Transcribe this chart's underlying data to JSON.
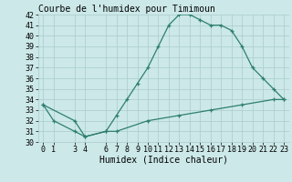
{
  "title": "Courbe de l'humidex pour Timimoun",
  "xlabel": "Humidex (Indice chaleur)",
  "ylabel": "",
  "line1_x": [
    0,
    1,
    3,
    4,
    6,
    7,
    8,
    9,
    10,
    11,
    12,
    13,
    14,
    15,
    16,
    17,
    18,
    19,
    20,
    21,
    22,
    23
  ],
  "line1_y": [
    33.5,
    32,
    31,
    30.5,
    31,
    32.5,
    34,
    35.5,
    37,
    39,
    41,
    42,
    42,
    41.5,
    41,
    41,
    40.5,
    39,
    37,
    36,
    35,
    34
  ],
  "line2_x": [
    0,
    3,
    4,
    6,
    7,
    10,
    13,
    16,
    19,
    22,
    23
  ],
  "line2_y": [
    33.5,
    32,
    30.5,
    31,
    31,
    32,
    32.5,
    33,
    33.5,
    34,
    34
  ],
  "color": "#2d7f6e",
  "bg_color": "#cce8e8",
  "grid_color": "#aacccc",
  "xlim": [
    -0.5,
    23.5
  ],
  "ylim": [
    30,
    42
  ],
  "xticks": [
    0,
    1,
    3,
    4,
    6,
    7,
    8,
    9,
    10,
    11,
    12,
    13,
    14,
    15,
    16,
    17,
    18,
    19,
    20,
    21,
    22,
    23
  ],
  "yticks": [
    30,
    31,
    32,
    33,
    34,
    35,
    36,
    37,
    38,
    39,
    40,
    41,
    42
  ],
  "title_fontsize": 7,
  "label_fontsize": 7,
  "tick_fontsize": 6
}
